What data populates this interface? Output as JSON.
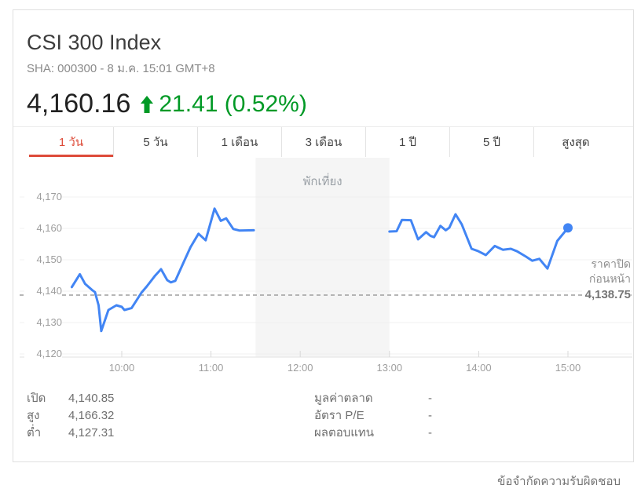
{
  "header": {
    "title": "CSI 300 Index",
    "subtitle": "SHA: 000300 - 8 ม.ค. 15:01 GMT+8",
    "price": "4,160.16",
    "change": "21.41 (0.52%)",
    "change_direction": "up"
  },
  "colors": {
    "line": "#4285f4",
    "up_green": "#009925",
    "tab_selected_red": "#dd4b39",
    "lunch_bg": "#f5f5f5",
    "gridline": "#f0f0f0",
    "axis": "#e2e2e2",
    "dashed": "#9e9e9e"
  },
  "tabs": {
    "items": [
      {
        "id": "1d",
        "label": "1 วัน",
        "selected": true
      },
      {
        "id": "5d",
        "label": "5 วัน",
        "selected": false
      },
      {
        "id": "1m",
        "label": "1 เดือน",
        "selected": false
      },
      {
        "id": "3m",
        "label": "3 เดือน",
        "selected": false
      },
      {
        "id": "1y",
        "label": "1 ปี",
        "selected": false
      },
      {
        "id": "5y",
        "label": "5 ปี",
        "selected": false
      },
      {
        "id": "max",
        "label": "สูงสุด",
        "selected": false
      }
    ]
  },
  "chart_data": {
    "type": "line",
    "title": "CSI 300 Index intraday",
    "x_unit": "time of day (GMT+8)",
    "y_unit": "index points",
    "ylim": [
      4120,
      4170
    ],
    "x_range_hours": [
      9.42,
      15.08
    ],
    "grid": true,
    "y_ticks": [
      {
        "v": 4170,
        "label": "4,170"
      },
      {
        "v": 4160,
        "label": "4,160"
      },
      {
        "v": 4150,
        "label": "4,150"
      },
      {
        "v": 4140,
        "label": "4,140"
      },
      {
        "v": 4130,
        "label": "4,130"
      },
      {
        "v": 4120,
        "label": "4,120"
      }
    ],
    "x_ticks": [
      {
        "t": 10,
        "label": "10:00"
      },
      {
        "t": 11,
        "label": "11:00"
      },
      {
        "t": 12,
        "label": "12:00"
      },
      {
        "t": 13,
        "label": "13:00"
      },
      {
        "t": 14,
        "label": "14:00"
      },
      {
        "t": 15,
        "label": "15:00"
      }
    ],
    "previous_close": {
      "value": 4138.75,
      "label_line1": "ราคาปิด",
      "label_line2": "ก่อนหน้า",
      "value_label": "4,138.75"
    },
    "lunch_break": {
      "label": "พักเที่ยง",
      "start_hour": 11.5,
      "end_hour": 13
    },
    "sessions": [
      {
        "name": "morning",
        "points": [
          [
            9.44,
            4141.3
          ],
          [
            9.53,
            4145.4
          ],
          [
            9.59,
            4142.3
          ],
          [
            9.67,
            4140.3
          ],
          [
            9.7,
            4139.7
          ],
          [
            9.74,
            4135.5
          ],
          [
            9.77,
            4127.3
          ],
          [
            9.85,
            4134.0
          ],
          [
            9.94,
            4135.5
          ],
          [
            10.0,
            4135.0
          ],
          [
            10.03,
            4134.0
          ],
          [
            10.11,
            4134.6
          ],
          [
            10.22,
            4139.5
          ],
          [
            10.28,
            4141.5
          ],
          [
            10.37,
            4144.8
          ],
          [
            10.44,
            4147.0
          ],
          [
            10.51,
            4143.5
          ],
          [
            10.55,
            4142.8
          ],
          [
            10.6,
            4143.3
          ],
          [
            10.69,
            4149.0
          ],
          [
            10.77,
            4154.0
          ],
          [
            10.86,
            4158.3
          ],
          [
            10.94,
            4156.2
          ],
          [
            11.04,
            4166.3
          ],
          [
            11.11,
            4162.4
          ],
          [
            11.17,
            4163.2
          ],
          [
            11.25,
            4159.8
          ],
          [
            11.32,
            4159.3
          ],
          [
            11.48,
            4159.4
          ]
        ]
      },
      {
        "name": "afternoon",
        "points": [
          [
            13.0,
            4159.0
          ],
          [
            13.08,
            4159.1
          ],
          [
            13.14,
            4162.7
          ],
          [
            13.24,
            4162.6
          ],
          [
            13.32,
            4156.5
          ],
          [
            13.41,
            4158.8
          ],
          [
            13.46,
            4157.6
          ],
          [
            13.5,
            4157.2
          ],
          [
            13.57,
            4160.8
          ],
          [
            13.63,
            4159.4
          ],
          [
            13.67,
            4160.2
          ],
          [
            13.74,
            4164.5
          ],
          [
            13.81,
            4161.3
          ],
          [
            13.92,
            4153.5
          ],
          [
            13.99,
            4152.8
          ],
          [
            14.08,
            4151.5
          ],
          [
            14.18,
            4154.4
          ],
          [
            14.27,
            4153.2
          ],
          [
            14.36,
            4153.5
          ],
          [
            14.43,
            4152.7
          ],
          [
            14.53,
            4151.0
          ],
          [
            14.6,
            4149.7
          ],
          [
            14.68,
            4150.3
          ],
          [
            14.77,
            4147.2
          ],
          [
            14.88,
            4156.0
          ],
          [
            15.0,
            4160.16
          ]
        ]
      }
    ],
    "end_dot": true,
    "legend": "none"
  },
  "stats": {
    "left": [
      {
        "key": "open",
        "label": "เปิด",
        "value": "4,140.85"
      },
      {
        "key": "high",
        "label": "สูง",
        "value": "4,166.32"
      },
      {
        "key": "low",
        "label": "ต่ำ",
        "value": "4,127.31"
      }
    ],
    "right": [
      {
        "key": "market_cap",
        "label": "มูลค่าตลาด",
        "value": "-"
      },
      {
        "key": "pe_ratio",
        "label": "อัตรา P/E",
        "value": "-"
      },
      {
        "key": "return",
        "label": "ผลตอบแทน",
        "value": "-"
      }
    ]
  },
  "footer": {
    "disclaimer": "ข้อจำกัดความรับผิดชอบ"
  }
}
